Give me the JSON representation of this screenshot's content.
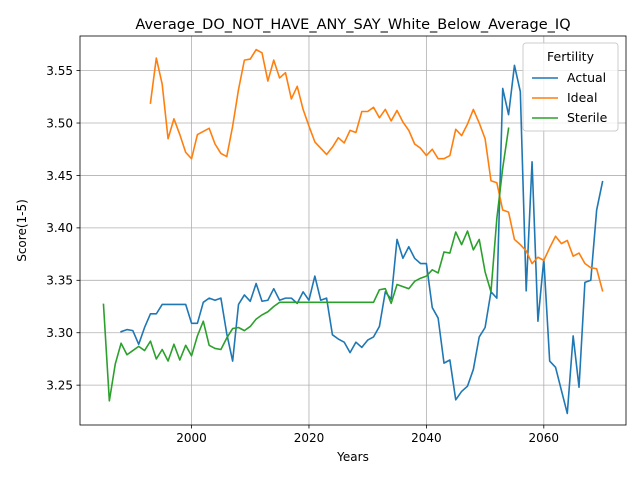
{
  "chart_data": {
    "type": "line",
    "title": "Average_DO_NOT_HAVE_ANY_SAY_White_Below_Average_IQ",
    "xlabel": "Years",
    "ylabel": "Score(1-5)",
    "xlim": [
      1981,
      2074
    ],
    "ylim": [
      3.212,
      3.583
    ],
    "xticks": [
      2000,
      2020,
      2040,
      2060
    ],
    "yticks": [
      3.25,
      3.3,
      3.35,
      3.4,
      3.45,
      3.5,
      3.55
    ],
    "grid": true,
    "legend": {
      "title": "Fertility",
      "placement": "top-right"
    },
    "series": [
      {
        "name": "Actual",
        "color": "#1f77b4",
        "x": [
          1988,
          1989,
          1990,
          1991,
          1992,
          1993,
          1994,
          1995,
          1996,
          1997,
          1998,
          1999,
          2000,
          2001,
          2002,
          2003,
          2004,
          2005,
          2006,
          2007,
          2008,
          2009,
          2010,
          2011,
          2012,
          2013,
          2014,
          2015,
          2016,
          2017,
          2018,
          2019,
          2020,
          2021,
          2022,
          2023,
          2024,
          2025,
          2026,
          2027,
          2028,
          2029,
          2030,
          2031,
          2032,
          2033,
          2034,
          2035,
          2036,
          2037,
          2038,
          2039,
          2040,
          2041,
          2042,
          2043,
          2044,
          2045,
          2046,
          2047,
          2048,
          2049,
          2050,
          2051,
          2052,
          2053,
          2054,
          2055,
          2056,
          2057,
          2058,
          2059,
          2060,
          2061,
          2062,
          2063,
          2064,
          2065,
          2066,
          2067,
          2068,
          2069,
          2070
        ],
        "values": [
          3.301,
          3.303,
          3.302,
          3.289,
          3.305,
          3.318,
          3.318,
          3.327,
          3.327,
          3.327,
          3.327,
          3.327,
          3.309,
          3.309,
          3.329,
          3.333,
          3.331,
          3.333,
          3.299,
          3.273,
          3.327,
          3.336,
          3.33,
          3.347,
          3.33,
          3.331,
          3.342,
          3.331,
          3.333,
          3.333,
          3.328,
          3.339,
          3.331,
          3.354,
          3.331,
          3.333,
          3.298,
          3.294,
          3.291,
          3.281,
          3.291,
          3.286,
          3.293,
          3.296,
          3.306,
          3.339,
          3.332,
          3.389,
          3.371,
          3.382,
          3.371,
          3.366,
          3.366,
          3.324,
          3.314,
          3.271,
          3.274,
          3.236,
          3.244,
          3.249,
          3.265,
          3.296,
          3.305,
          3.339,
          3.333,
          3.533,
          3.508,
          3.555,
          3.53,
          3.34,
          3.463,
          3.311,
          3.37,
          3.273,
          3.267,
          3.245,
          3.223,
          3.297,
          3.248,
          3.348,
          3.35,
          3.417,
          3.444
        ]
      },
      {
        "name": "Ideal",
        "color": "#ff7f0e",
        "x": [
          1993,
          1994,
          1995,
          1996,
          1997,
          1998,
          1999,
          2000,
          2001,
          2002,
          2003,
          2004,
          2005,
          2006,
          2007,
          2008,
          2009,
          2010,
          2011,
          2012,
          2013,
          2014,
          2015,
          2016,
          2017,
          2018,
          2019,
          2020,
          2021,
          2022,
          2023,
          2024,
          2025,
          2026,
          2027,
          2028,
          2029,
          2030,
          2031,
          2032,
          2033,
          2034,
          2035,
          2036,
          2037,
          2038,
          2039,
          2040,
          2041,
          2042,
          2043,
          2044,
          2045,
          2046,
          2047,
          2048,
          2049,
          2050,
          2051,
          2052,
          2053,
          2054,
          2055,
          2056,
          2057,
          2058,
          2059,
          2060,
          2061,
          2062,
          2063,
          2064,
          2065,
          2066,
          2067,
          2068,
          2069,
          2070
        ],
        "values": [
          3.519,
          3.562,
          3.537,
          3.485,
          3.504,
          3.489,
          3.472,
          3.466,
          3.489,
          3.492,
          3.495,
          3.48,
          3.471,
          3.468,
          3.497,
          3.532,
          3.56,
          3.561,
          3.57,
          3.567,
          3.54,
          3.56,
          3.543,
          3.548,
          3.523,
          3.535,
          3.513,
          3.497,
          3.482,
          3.476,
          3.47,
          3.477,
          3.486,
          3.481,
          3.493,
          3.491,
          3.511,
          3.511,
          3.515,
          3.505,
          3.513,
          3.502,
          3.512,
          3.501,
          3.493,
          3.48,
          3.476,
          3.469,
          3.475,
          3.466,
          3.466,
          3.469,
          3.494,
          3.488,
          3.499,
          3.513,
          3.5,
          3.485,
          3.445,
          3.443,
          3.417,
          3.415,
          3.389,
          3.384,
          3.378,
          3.366,
          3.372,
          3.369,
          3.381,
          3.392,
          3.385,
          3.388,
          3.373,
          3.376,
          3.366,
          3.362,
          3.361,
          3.34
        ]
      },
      {
        "name": "Sterile",
        "color": "#2ca02c",
        "x": [
          1985,
          1986,
          1987,
          1988,
          1989,
          1990,
          1991,
          1992,
          1993,
          1994,
          1995,
          1996,
          1997,
          1998,
          1999,
          2000,
          2001,
          2002,
          2003,
          2004,
          2005,
          2006,
          2007,
          2008,
          2009,
          2010,
          2011,
          2012,
          2013,
          2014,
          2015,
          2016,
          2017,
          2018,
          2019,
          2020,
          2021,
          2022,
          2023,
          2024,
          2025,
          2026,
          2027,
          2028,
          2029,
          2030,
          2031,
          2032,
          2033,
          2034,
          2035,
          2036,
          2037,
          2038,
          2039,
          2040,
          2041,
          2042,
          2043,
          2044,
          2045,
          2046,
          2047,
          2048,
          2049,
          2050,
          2051,
          2052,
          2053,
          2054
        ],
        "values": [
          3.327,
          3.235,
          3.27,
          3.29,
          3.279,
          3.283,
          3.287,
          3.283,
          3.292,
          3.275,
          3.284,
          3.273,
          3.289,
          3.274,
          3.288,
          3.278,
          3.297,
          3.311,
          3.288,
          3.285,
          3.284,
          3.295,
          3.304,
          3.305,
          3.302,
          3.306,
          3.313,
          3.317,
          3.32,
          3.325,
          3.329,
          3.329,
          3.329,
          3.329,
          3.329,
          3.329,
          3.329,
          3.329,
          3.329,
          3.329,
          3.329,
          3.329,
          3.329,
          3.329,
          3.329,
          3.329,
          3.329,
          3.341,
          3.342,
          3.328,
          3.346,
          3.344,
          3.342,
          3.349,
          3.352,
          3.354,
          3.36,
          3.357,
          3.377,
          3.376,
          3.396,
          3.384,
          3.397,
          3.379,
          3.389,
          3.358,
          3.339,
          3.409,
          3.457,
          3.495
        ]
      }
    ]
  }
}
